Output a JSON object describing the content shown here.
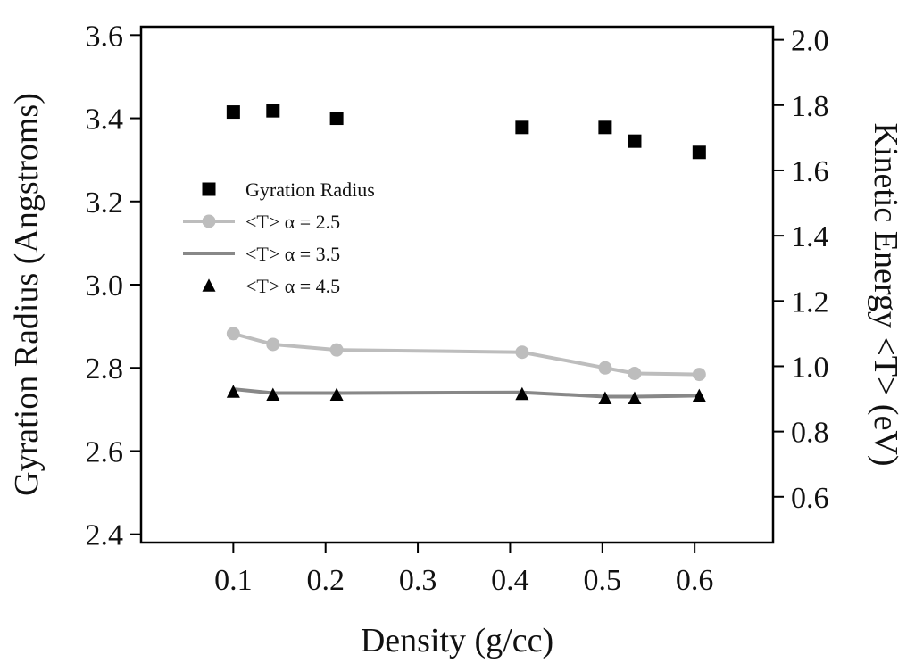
{
  "chart_data": {
    "type": "scatter",
    "xlabel": "Density (g/cc)",
    "ylabel_left": "Gyration Radius (Angstroms)",
    "ylabel_right": "Kinetic Energy <T> (eV)",
    "xlim": [
      0.0,
      0.685
    ],
    "ylim_left": [
      2.38,
      3.62
    ],
    "ylim_right": [
      0.46,
      2.04
    ],
    "xticks": [
      "0.1",
      "0.2",
      "0.3",
      "0.4",
      "0.5",
      "0.6"
    ],
    "yticks_left": [
      "2.4",
      "2.6",
      "2.8",
      "3.0",
      "3.2",
      "3.4",
      "3.6"
    ],
    "yticks_right": [
      "0.6",
      "0.8",
      "1.0",
      "1.2",
      "1.4",
      "1.6",
      "1.8",
      "2.0"
    ],
    "grid": false,
    "legend_position": "center-left",
    "series": [
      {
        "name": "Gyration Radius",
        "axis": "left",
        "marker": "square",
        "line": false,
        "color": "#000000",
        "x": [
          0.1,
          0.143,
          0.212,
          0.413,
          0.503,
          0.535,
          0.605
        ],
        "y": [
          3.415,
          3.418,
          3.4,
          3.378,
          3.378,
          3.345,
          3.318
        ]
      },
      {
        "name": "<T> α = 2.5",
        "axis": "right",
        "marker": "circle",
        "line": true,
        "color": "#bdbdbd",
        "x": [
          0.1,
          0.143,
          0.212,
          0.413,
          0.503,
          0.535,
          0.605
        ],
        "y": [
          1.1,
          1.067,
          1.05,
          1.043,
          0.995,
          0.978,
          0.975
        ]
      },
      {
        "name": "<T> α = 3.5",
        "axis": "right",
        "marker": "none",
        "line": true,
        "color": "#888888",
        "x": [
          0.1,
          0.143,
          0.212,
          0.413,
          0.503,
          0.535,
          0.605
        ],
        "y": [
          0.93,
          0.918,
          0.918,
          0.92,
          0.907,
          0.907,
          0.91
        ]
      },
      {
        "name": "<T> α = 4.5",
        "axis": "right",
        "marker": "triangle",
        "line": false,
        "color": "#000000",
        "x": [
          0.1,
          0.143,
          0.212,
          0.413,
          0.503,
          0.535,
          0.605
        ],
        "y": [
          0.922,
          0.913,
          0.913,
          0.915,
          0.902,
          0.902,
          0.91
        ]
      }
    ]
  }
}
